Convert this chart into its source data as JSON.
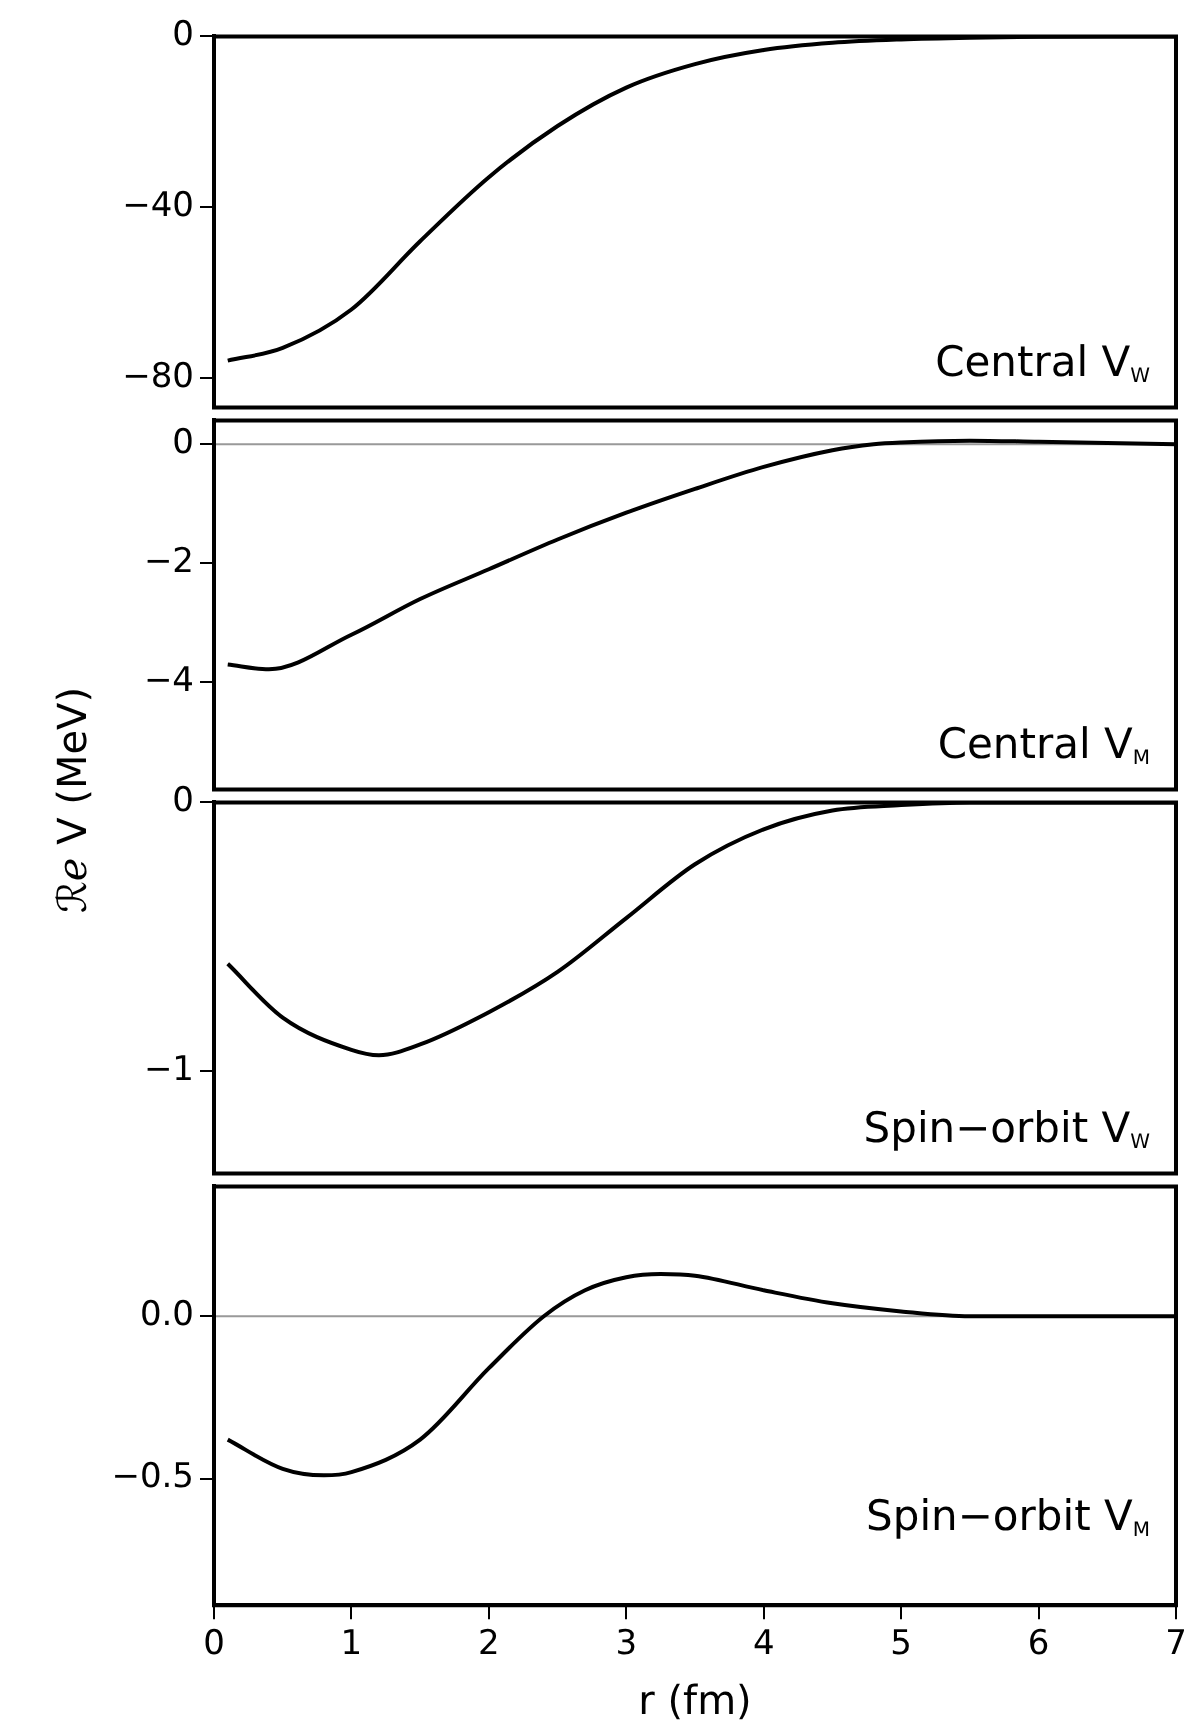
{
  "chart_data": [
    {
      "type": "line",
      "annotations": [
        "Central V$_{W}$"
      ],
      "x": [
        0.1,
        0.5,
        1,
        1.5,
        2,
        2.5,
        3,
        3.5,
        4,
        4.5,
        5,
        5.5,
        6,
        6.5,
        7
      ],
      "series": [
        {
          "color": "#000000",
          "values": [
            -76,
            -73,
            -64,
            -48,
            -33,
            -21,
            -12,
            -6.5,
            -3.2,
            -1.5,
            -0.7,
            -0.3,
            -0.1,
            0,
            0
          ]
        }
      ],
      "xlim": [
        0,
        7
      ],
      "xticks": [
        0,
        1,
        2,
        3,
        4,
        5,
        6,
        7
      ],
      "ylim": [
        -87,
        0
      ],
      "yticks": [
        -80,
        -40,
        0
      ],
      "tick_labels": "y"
    },
    {
      "type": "line",
      "ylabel": "ℛℯ V (MeV)",
      "annotations": [
        "Central V$_{M}$"
      ],
      "x": [
        0.1,
        0.4,
        1,
        1.5,
        2,
        2.5,
        3,
        3.5,
        4,
        4.5,
        4.8,
        5,
        5.5,
        6,
        6.5,
        7
      ],
      "series": [
        {
          "color": "#000000",
          "values": [
            -3.7,
            -3.78,
            -3.2,
            -2.6,
            -2.1,
            -1.6,
            -1.15,
            -0.75,
            -0.38,
            -0.1,
            0,
            0.03,
            0.06,
            0.04,
            0.02,
            0
          ]
        }
      ],
      "xlim": [
        0,
        7
      ],
      "xticks": [
        0,
        1,
        2,
        3,
        4,
        5,
        6,
        7
      ],
      "ylim": [
        -5.8,
        0.4
      ],
      "yticks": [
        -4,
        -2,
        0
      ],
      "tick_labels": "y",
      "ref_lines": [
        {
          "axis": "y",
          "value": 0,
          "color": "#999999"
        }
      ]
    },
    {
      "type": "line",
      "annotations": [
        "Spin−orbit V$_{W}$"
      ],
      "x": [
        0.1,
        0.5,
        1,
        1.2,
        1.5,
        2,
        2.5,
        3,
        3.5,
        4,
        4.5,
        5,
        5.5,
        6,
        7
      ],
      "series": [
        {
          "color": "#000000",
          "values": [
            -0.6,
            -0.8,
            -0.92,
            -0.94,
            -0.9,
            -0.78,
            -0.63,
            -0.43,
            -0.23,
            -0.1,
            -0.03,
            -0.01,
            0,
            0,
            0
          ]
        }
      ],
      "xlim": [
        0,
        7
      ],
      "xticks": [
        0,
        1,
        2,
        3,
        4,
        5,
        6,
        7
      ],
      "ylim": [
        -1.38,
        0
      ],
      "yticks": [
        -1,
        0
      ],
      "tick_labels": "y"
    },
    {
      "type": "line",
      "xlabel": "r (fm)",
      "annotations": [
        "Spin−orbit V$_{M}$"
      ],
      "x": [
        0.1,
        0.5,
        0.8,
        1,
        1.5,
        2,
        2.4,
        2.7,
        3,
        3.25,
        3.5,
        4,
        4.5,
        5,
        5.5,
        6,
        7
      ],
      "series": [
        {
          "color": "#000000",
          "values": [
            -0.38,
            -0.47,
            -0.49,
            -0.48,
            -0.38,
            -0.16,
            0,
            0.08,
            0.12,
            0.13,
            0.125,
            0.08,
            0.04,
            0.015,
            0,
            0,
            0
          ]
        }
      ],
      "xlim": [
        0,
        7
      ],
      "xticks": [
        0,
        1,
        2,
        3,
        4,
        5,
        6,
        7
      ],
      "ylim": [
        -0.89,
        0.4
      ],
      "yticks": [
        -0.5,
        {
          "value": 0,
          "label": "0.0"
        }
      ],
      "ref_lines": [
        {
          "axis": "y",
          "value": 0,
          "color": "#999999"
        }
      ]
    }
  ]
}
